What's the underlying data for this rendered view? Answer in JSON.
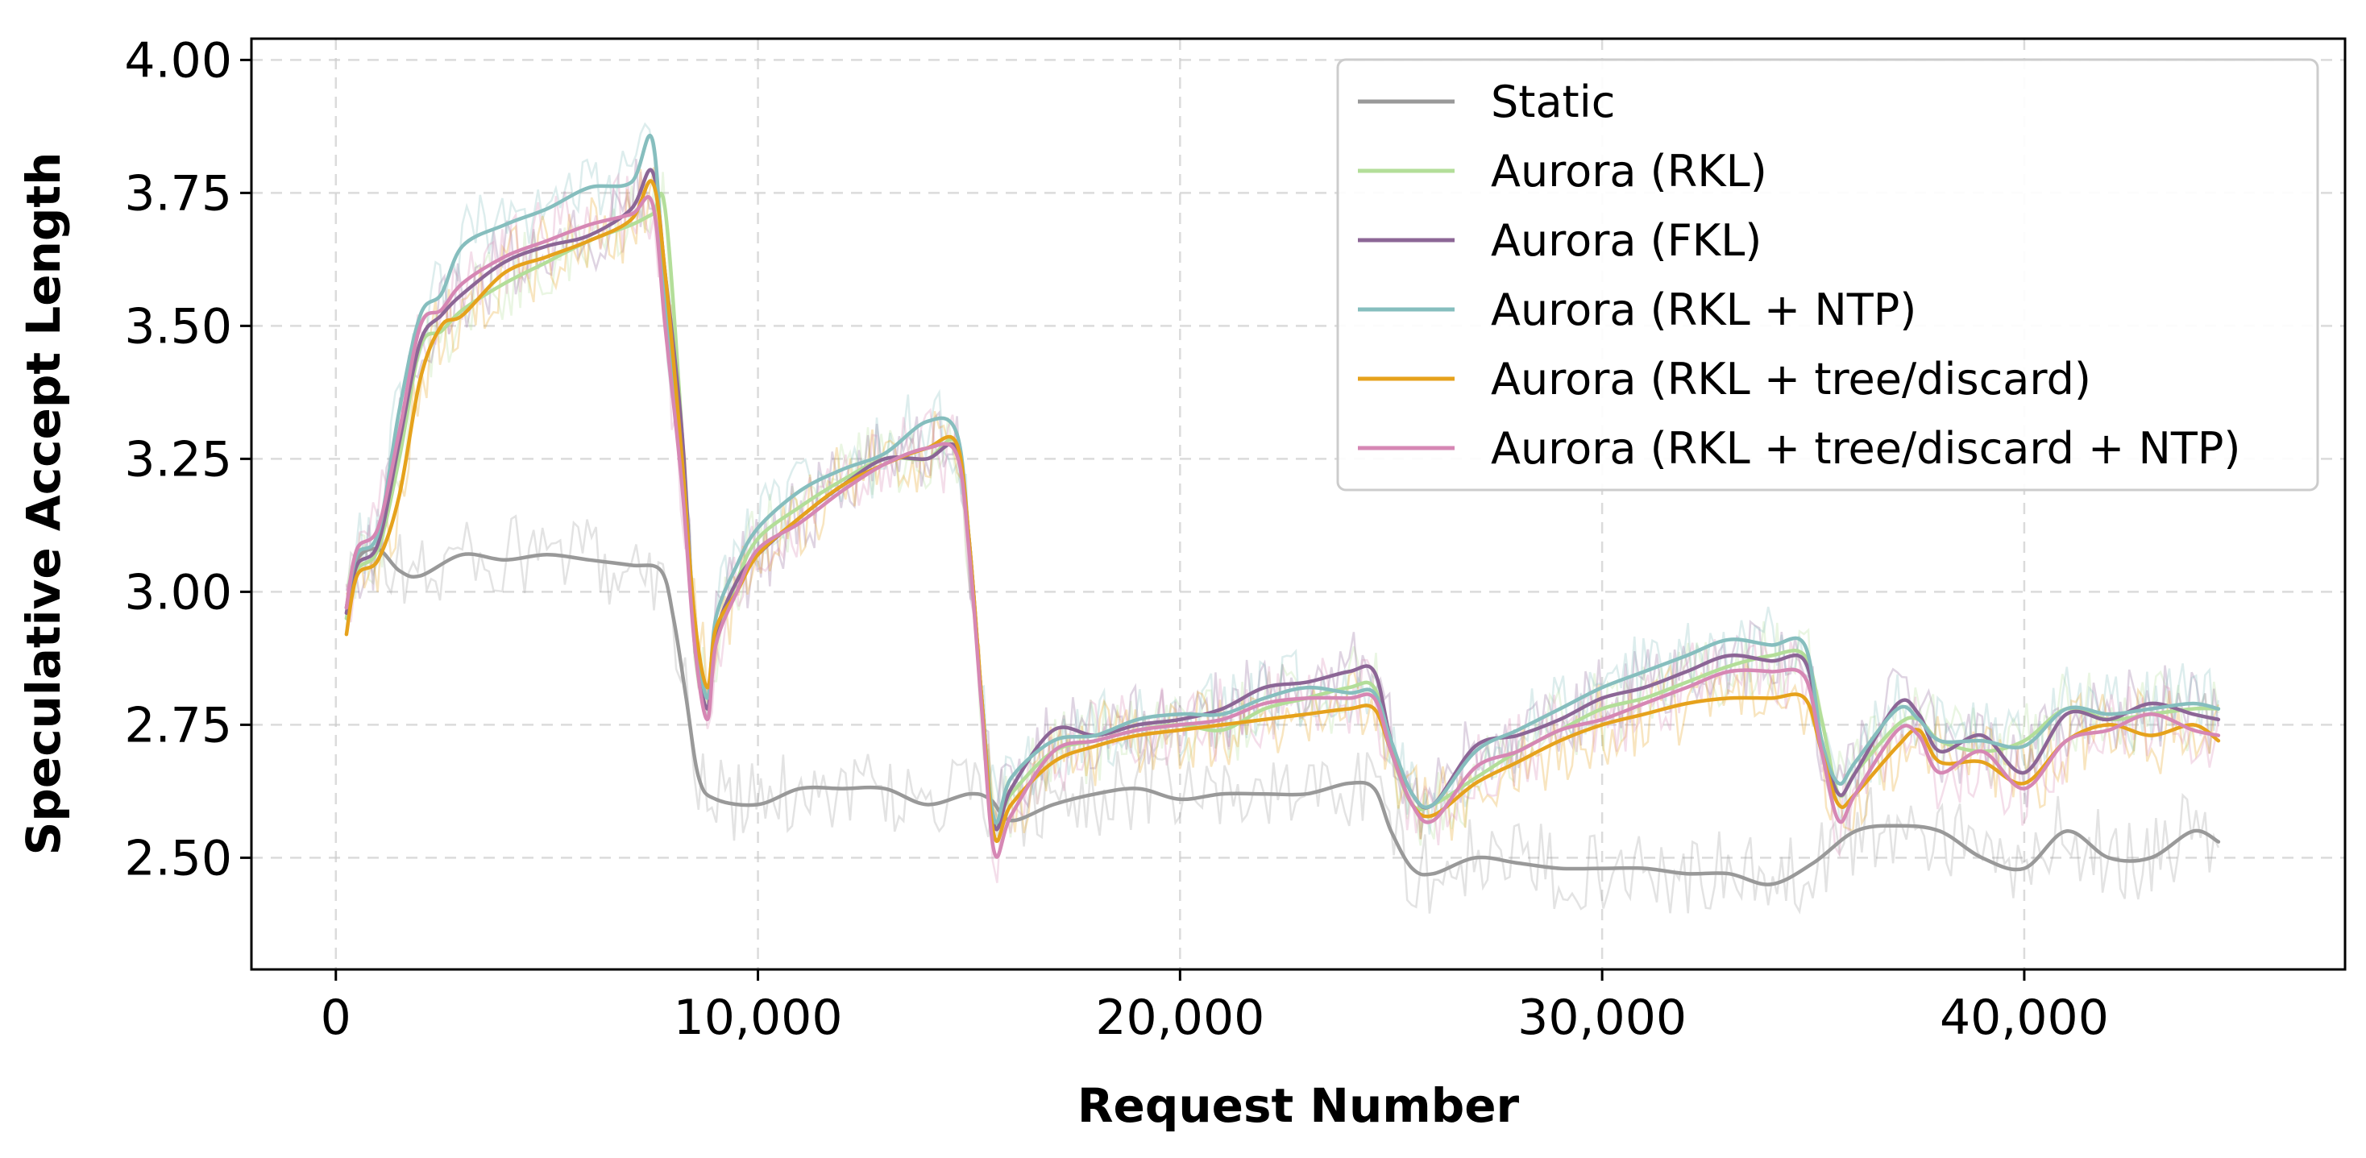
{
  "chart_data": {
    "type": "line",
    "xlabel": "Request Number",
    "ylabel": "Speculative Accept Length",
    "xlim": [
      -2000,
      47600
    ],
    "ylim": [
      2.29,
      4.04
    ],
    "xticks": [
      0,
      10000,
      20000,
      30000,
      40000
    ],
    "xtick_labels": [
      "0",
      "10,000",
      "20,000",
      "30,000",
      "40,000"
    ],
    "yticks": [
      2.5,
      2.75,
      3.0,
      3.25,
      3.5,
      3.75,
      4.0
    ],
    "ytick_labels": [
      "2.50",
      "2.75",
      "3.00",
      "3.25",
      "3.50",
      "3.75",
      "4.00"
    ],
    "grid": true,
    "legend_position": "top-right",
    "raw_traces_shown": true,
    "series": [
      {
        "name": "Static",
        "color": "#999999",
        "x": [
          250,
          500,
          1000,
          1500,
          2000,
          3000,
          4000,
          5000,
          6000,
          7000,
          7700,
          8000,
          8300,
          8600,
          9000,
          10000,
          11000,
          12000,
          13000,
          14000,
          15000,
          15500,
          16000,
          17000,
          18000,
          19000,
          20000,
          21000,
          22000,
          23000,
          24000,
          24600,
          25000,
          25500,
          26000,
          27000,
          28000,
          29000,
          30000,
          31000,
          32000,
          33000,
          34000,
          35000,
          36000,
          37000,
          38000,
          39000,
          40000,
          41000,
          42000,
          43000,
          44000,
          44600
        ],
        "y": [
          2.97,
          3.06,
          3.08,
          3.04,
          3.03,
          3.07,
          3.06,
          3.07,
          3.06,
          3.05,
          3.04,
          2.95,
          2.8,
          2.65,
          2.61,
          2.6,
          2.63,
          2.63,
          2.63,
          2.6,
          2.62,
          2.61,
          2.57,
          2.6,
          2.62,
          2.63,
          2.61,
          2.62,
          2.62,
          2.62,
          2.64,
          2.63,
          2.55,
          2.48,
          2.47,
          2.5,
          2.49,
          2.48,
          2.48,
          2.48,
          2.47,
          2.47,
          2.45,
          2.49,
          2.55,
          2.56,
          2.55,
          2.5,
          2.48,
          2.55,
          2.5,
          2.5,
          2.55,
          2.53
        ]
      },
      {
        "name": "Aurora (RKL)",
        "color": "#b3de99",
        "x": [
          250,
          500,
          1000,
          1500,
          2000,
          2500,
          3000,
          4000,
          5000,
          6000,
          7000,
          7500,
          7800,
          8200,
          8500,
          8800,
          9000,
          9500,
          10000,
          11000,
          12000,
          13000,
          14000,
          14700,
          15000,
          15300,
          15600,
          16000,
          17000,
          18000,
          19000,
          20000,
          21000,
          22000,
          23000,
          24000,
          24600,
          25000,
          25500,
          26000,
          27000,
          28000,
          29000,
          30000,
          31000,
          32000,
          33000,
          34000,
          34800,
          35200,
          35600,
          36000,
          37000,
          37500,
          38000,
          39000,
          40000,
          41000,
          42000,
          43000,
          44000,
          44600
        ],
        "y": [
          2.95,
          3.04,
          3.08,
          3.25,
          3.46,
          3.49,
          3.53,
          3.58,
          3.62,
          3.66,
          3.69,
          3.71,
          3.72,
          3.3,
          2.9,
          2.78,
          2.9,
          3.02,
          3.1,
          3.16,
          3.21,
          3.25,
          3.25,
          3.28,
          3.1,
          2.8,
          2.57,
          2.62,
          2.7,
          2.72,
          2.74,
          2.75,
          2.74,
          2.78,
          2.8,
          2.82,
          2.82,
          2.7,
          2.6,
          2.6,
          2.65,
          2.7,
          2.74,
          2.78,
          2.8,
          2.83,
          2.86,
          2.88,
          2.88,
          2.76,
          2.62,
          2.66,
          2.75,
          2.76,
          2.72,
          2.7,
          2.72,
          2.78,
          2.76,
          2.77,
          2.78,
          2.78
        ]
      },
      {
        "name": "Aurora (FKL)",
        "color": "#8c6696",
        "x": [
          250,
          500,
          1000,
          1500,
          2000,
          2500,
          3000,
          4000,
          5000,
          6000,
          7000,
          7500,
          7800,
          8200,
          8500,
          8800,
          9000,
          9500,
          10000,
          11000,
          12000,
          13000,
          14000,
          14700,
          15000,
          15300,
          15600,
          16000,
          17000,
          18000,
          19000,
          20000,
          21000,
          22000,
          23000,
          24000,
          24600,
          25000,
          25500,
          26000,
          27000,
          28000,
          29000,
          30000,
          31000,
          32000,
          33000,
          34000,
          34800,
          35200,
          35600,
          36000,
          37000,
          37500,
          38000,
          39000,
          40000,
          41000,
          42000,
          43000,
          44000,
          44600
        ],
        "y": [
          2.96,
          3.05,
          3.09,
          3.28,
          3.47,
          3.52,
          3.56,
          3.62,
          3.65,
          3.67,
          3.72,
          3.79,
          3.6,
          3.3,
          2.92,
          2.78,
          2.92,
          3.02,
          3.07,
          3.14,
          3.2,
          3.25,
          3.25,
          3.27,
          3.1,
          2.8,
          2.56,
          2.63,
          2.74,
          2.73,
          2.75,
          2.76,
          2.78,
          2.82,
          2.83,
          2.85,
          2.85,
          2.72,
          2.62,
          2.6,
          2.71,
          2.73,
          2.76,
          2.8,
          2.82,
          2.85,
          2.88,
          2.87,
          2.87,
          2.72,
          2.62,
          2.66,
          2.79,
          2.77,
          2.7,
          2.73,
          2.66,
          2.77,
          2.76,
          2.79,
          2.77,
          2.76
        ]
      },
      {
        "name": "Aurora (RKL + NTP)",
        "color": "#86bebe",
        "x": [
          250,
          500,
          1000,
          1500,
          2000,
          2500,
          3000,
          4000,
          5000,
          6000,
          7000,
          7500,
          7800,
          8200,
          8500,
          8800,
          9000,
          9500,
          10000,
          11000,
          12000,
          13000,
          14000,
          14700,
          15000,
          15300,
          15600,
          16000,
          17000,
          18000,
          19000,
          20000,
          21000,
          22000,
          23000,
          24000,
          24600,
          25000,
          25500,
          26000,
          27000,
          28000,
          29000,
          30000,
          31000,
          32000,
          33000,
          34000,
          34800,
          35200,
          35600,
          36000,
          37000,
          37500,
          38000,
          39000,
          40000,
          41000,
          42000,
          43000,
          44000,
          44600
        ],
        "y": [
          2.97,
          3.07,
          3.11,
          3.34,
          3.52,
          3.56,
          3.65,
          3.69,
          3.72,
          3.76,
          3.77,
          3.85,
          3.55,
          3.25,
          2.95,
          2.8,
          2.95,
          3.05,
          3.12,
          3.19,
          3.23,
          3.26,
          3.32,
          3.3,
          3.1,
          2.8,
          2.57,
          2.65,
          2.72,
          2.73,
          2.76,
          2.77,
          2.77,
          2.8,
          2.82,
          2.81,
          2.81,
          2.72,
          2.62,
          2.6,
          2.7,
          2.74,
          2.78,
          2.82,
          2.85,
          2.88,
          2.91,
          2.9,
          2.9,
          2.72,
          2.64,
          2.68,
          2.78,
          2.76,
          2.72,
          2.72,
          2.71,
          2.78,
          2.77,
          2.78,
          2.79,
          2.78
        ]
      },
      {
        "name": "Aurora (RKL + tree/discard)",
        "color": "#e6a21c",
        "x": [
          250,
          500,
          1000,
          1500,
          2000,
          2500,
          3000,
          4000,
          5000,
          6000,
          7000,
          7500,
          7800,
          8200,
          8500,
          8800,
          9000,
          9500,
          10000,
          11000,
          12000,
          13000,
          14000,
          14700,
          15000,
          15300,
          15600,
          16000,
          17000,
          18000,
          19000,
          20000,
          21000,
          22000,
          23000,
          24000,
          24600,
          25000,
          25500,
          26000,
          27000,
          28000,
          29000,
          30000,
          31000,
          32000,
          33000,
          34000,
          34800,
          35200,
          35600,
          36000,
          37000,
          37500,
          38000,
          39000,
          40000,
          41000,
          42000,
          43000,
          44000,
          44600
        ],
        "y": [
          2.92,
          3.03,
          3.06,
          3.18,
          3.4,
          3.5,
          3.52,
          3.6,
          3.63,
          3.66,
          3.7,
          3.77,
          3.6,
          3.25,
          2.95,
          2.82,
          2.93,
          3.0,
          3.07,
          3.14,
          3.2,
          3.24,
          3.27,
          3.28,
          3.1,
          2.8,
          2.54,
          2.6,
          2.68,
          2.71,
          2.73,
          2.74,
          2.75,
          2.76,
          2.77,
          2.78,
          2.78,
          2.7,
          2.6,
          2.58,
          2.64,
          2.68,
          2.72,
          2.75,
          2.77,
          2.79,
          2.8,
          2.8,
          2.8,
          2.7,
          2.6,
          2.62,
          2.71,
          2.74,
          2.68,
          2.68,
          2.64,
          2.72,
          2.75,
          2.73,
          2.75,
          2.72
        ]
      },
      {
        "name": "Aurora (RKL + tree/discard + NTP)",
        "color": "#d687b4",
        "x": [
          250,
          500,
          1000,
          1500,
          2000,
          2500,
          3000,
          4000,
          5000,
          6000,
          7000,
          7500,
          7800,
          8200,
          8500,
          8800,
          9000,
          9500,
          10000,
          11000,
          12000,
          13000,
          14000,
          14700,
          15000,
          15300,
          15600,
          16000,
          17000,
          18000,
          19000,
          20000,
          21000,
          22000,
          23000,
          24000,
          24600,
          25000,
          25500,
          26000,
          27000,
          28000,
          29000,
          30000,
          31000,
          32000,
          33000,
          34000,
          34800,
          35200,
          35600,
          36000,
          37000,
          37500,
          38000,
          39000,
          40000,
          41000,
          42000,
          43000,
          44000,
          44600
        ],
        "y": [
          2.97,
          3.08,
          3.12,
          3.3,
          3.5,
          3.53,
          3.58,
          3.63,
          3.66,
          3.69,
          3.71,
          3.73,
          3.5,
          3.2,
          2.9,
          2.76,
          2.9,
          3.0,
          3.08,
          3.13,
          3.19,
          3.24,
          3.27,
          3.26,
          3.08,
          2.78,
          2.51,
          2.58,
          2.7,
          2.72,
          2.74,
          2.75,
          2.76,
          2.79,
          2.8,
          2.8,
          2.8,
          2.7,
          2.6,
          2.57,
          2.67,
          2.7,
          2.74,
          2.76,
          2.79,
          2.82,
          2.85,
          2.85,
          2.84,
          2.7,
          2.57,
          2.62,
          2.74,
          2.73,
          2.66,
          2.7,
          2.63,
          2.72,
          2.74,
          2.77,
          2.74,
          2.73
        ]
      }
    ]
  }
}
